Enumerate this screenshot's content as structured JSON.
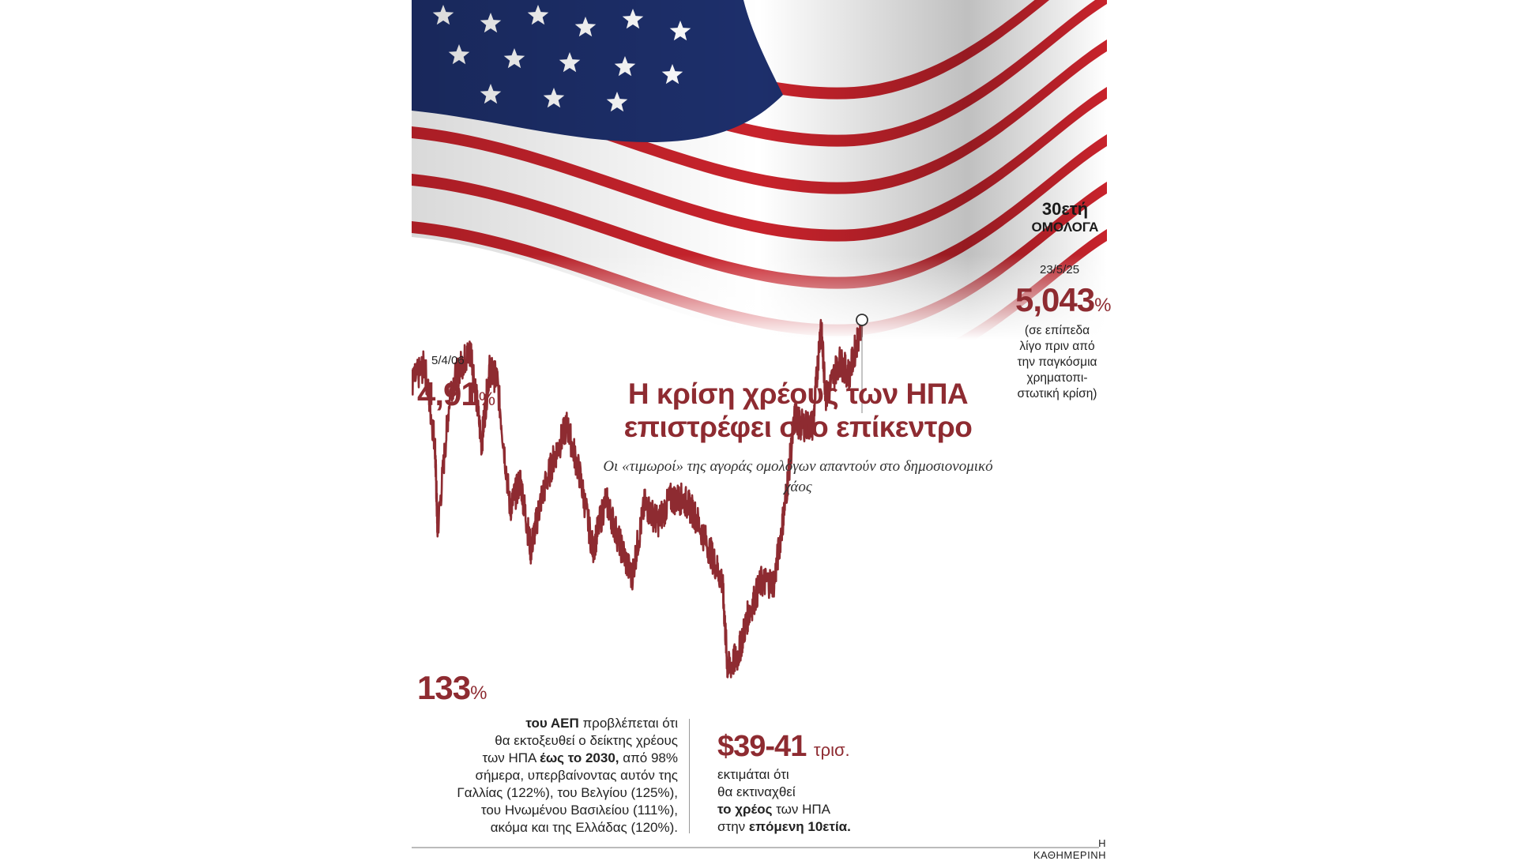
{
  "headline": "Η κρίση χρέους των ΗΠΑ επιστρέφει στο επίκεντρο",
  "subheadline": "Οι «τιμωροί» της αγοράς ομολόγων απαντούν στο δημοσιονομικό χάος",
  "series_label": {
    "line1": "30ετή",
    "line2": "ΟΜΟΛΟΓΑ"
  },
  "start_point": {
    "date": "5/4/06",
    "value": "4,91",
    "unit": "%"
  },
  "end_point": {
    "date": "23/5/25",
    "value": "5,043",
    "unit": "%",
    "note_lines": [
      "(σε επίπεδα",
      "λίγο πριν από",
      "την παγκόσμια",
      "χρηματοπι-",
      "στωτική κρίση)"
    ]
  },
  "stat_gdp": {
    "value": "133",
    "unit": "%",
    "text_1": "του ΑΕΠ",
    "text_2": " προβλέπεται ότι",
    "text_3": "θα εκτοξευθεί ο δείκτης χρέους",
    "text_4": "των ΗΠΑ ",
    "text_5": "έως το 2030,",
    "text_6": " από 98%",
    "text_7": "σήμερα, υπερβαίνοντας αυτόν της",
    "text_8": "Γαλλίας (122%), του Βελγίου (125%),",
    "text_9": "του Ηνωμένου Βασιλείου (111%),",
    "text_10": "ακόμα και της Ελλάδας (120%)."
  },
  "stat_debt": {
    "value": "$39-41",
    "unit": "τρισ.",
    "text_1": "εκτιμάται ότι",
    "text_2": "θα εκτιναχθεί",
    "text_3": "το χρέος",
    "text_4": " των ΗΠΑ",
    "text_5": "στην ",
    "text_6": "επόμενη 10ετία."
  },
  "credit": "Η ΚΑΘΗΜΕΡΙΝΗ",
  "colors": {
    "accent": "#8e2b31",
    "flag_red": "#c8232c",
    "flag_blue": "#1d2f6b"
  },
  "chart_data": {
    "type": "line",
    "x_range": [
      "2006-04-05",
      "2025-05-23"
    ],
    "x": [
      2006.26,
      2006.5,
      2007.0,
      2007.5,
      2008.0,
      2008.5,
      2008.9,
      2009.0,
      2009.5,
      2010.0,
      2010.3,
      2010.7,
      2011.0,
      2011.3,
      2011.8,
      2012.2,
      2012.6,
      2013.0,
      2013.5,
      2014.0,
      2014.5,
      2015.0,
      2015.5,
      2016.0,
      2016.5,
      2017.0,
      2017.5,
      2018.0,
      2018.5,
      2018.9,
      2019.5,
      2020.0,
      2020.2,
      2020.6,
      2021.0,
      2021.5,
      2022.0,
      2022.4,
      2022.8,
      2023.0,
      2023.5,
      2023.8,
      2024.0,
      2024.5,
      2024.9,
      2025.39
    ],
    "values": [
      4.91,
      5.15,
      4.85,
      5.1,
      4.35,
      4.55,
      3.7,
      2.75,
      4.3,
      4.6,
      4.7,
      3.7,
      4.5,
      4.4,
      3.0,
      3.3,
      2.55,
      3.1,
      3.55,
      3.9,
      3.35,
      2.55,
      3.1,
      2.65,
      2.25,
      3.05,
      2.85,
      3.1,
      3.1,
      2.95,
      2.55,
      2.2,
      1.25,
      1.4,
      1.85,
      2.2,
      2.2,
      3.0,
      4.0,
      3.9,
      3.9,
      5.0,
      4.2,
      4.6,
      4.45,
      5.043
    ],
    "ylim": [
      0.8,
      5.6
    ]
  }
}
